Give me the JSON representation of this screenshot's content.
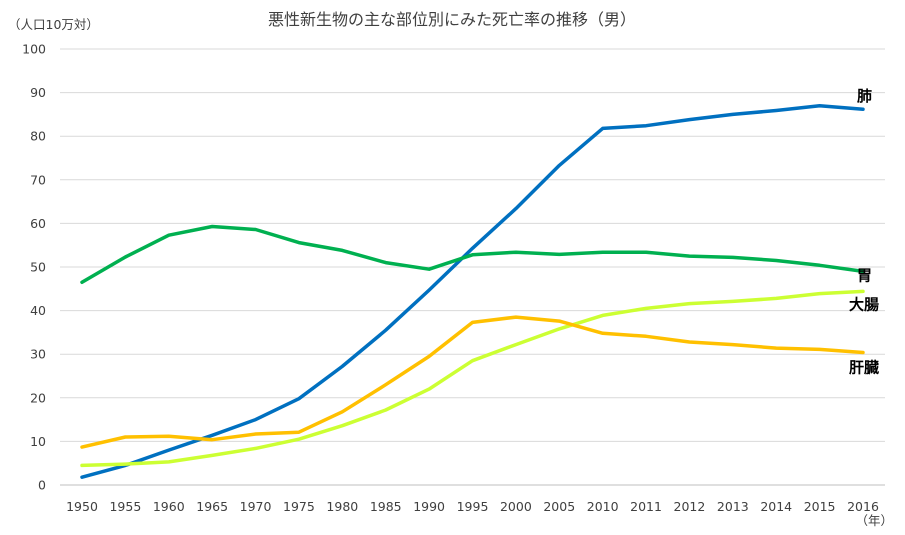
{
  "chart_data": {
    "type": "line",
    "title": "悪性新生物の主な部位別にみた死亡率の推移（男）",
    "ylabel": "（人口10万対）",
    "xlabel": "（年）",
    "ylim": [
      0,
      100
    ],
    "yticks": [
      0,
      10,
      20,
      30,
      40,
      50,
      60,
      70,
      80,
      90,
      100
    ],
    "grid": true,
    "legend": "labels at line ends (right)",
    "categories": [
      "1950",
      "1955",
      "1960",
      "1965",
      "1970",
      "1975",
      "1980",
      "1985",
      "1990",
      "1995",
      "2000",
      "2005",
      "2010",
      "2011",
      "2012",
      "2013",
      "2014",
      "2015",
      "2016"
    ],
    "series": [
      {
        "name": "肺",
        "color": "#0070C0",
        "values": [
          1.8,
          4.5,
          8.0,
          11.4,
          15.0,
          19.8,
          27.2,
          35.5,
          44.7,
          54.3,
          63.4,
          73.3,
          81.8,
          82.4,
          83.8,
          85.0,
          85.9,
          87.0,
          86.2
        ]
      },
      {
        "name": "胃",
        "color": "#00B050",
        "values": [
          46.5,
          52.3,
          57.3,
          59.3,
          58.6,
          55.6,
          53.8,
          51.0,
          49.5,
          52.8,
          53.4,
          52.9,
          53.4,
          53.4,
          52.5,
          52.2,
          51.5,
          50.4,
          49.0
        ]
      },
      {
        "name": "大腸",
        "color": "#CCFF33",
        "values": [
          4.5,
          4.8,
          5.3,
          6.8,
          8.4,
          10.5,
          13.6,
          17.2,
          22.0,
          28.5,
          32.2,
          35.8,
          38.9,
          40.5,
          41.6,
          42.1,
          42.8,
          43.9,
          44.4
        ]
      },
      {
        "name": "肝臓",
        "color": "#FFC000",
        "values": [
          8.7,
          11.0,
          11.2,
          10.4,
          11.7,
          12.1,
          16.8,
          23.0,
          29.5,
          37.3,
          38.5,
          37.6,
          34.8,
          34.1,
          32.8,
          32.2,
          31.4,
          31.1,
          30.4
        ]
      }
    ]
  }
}
